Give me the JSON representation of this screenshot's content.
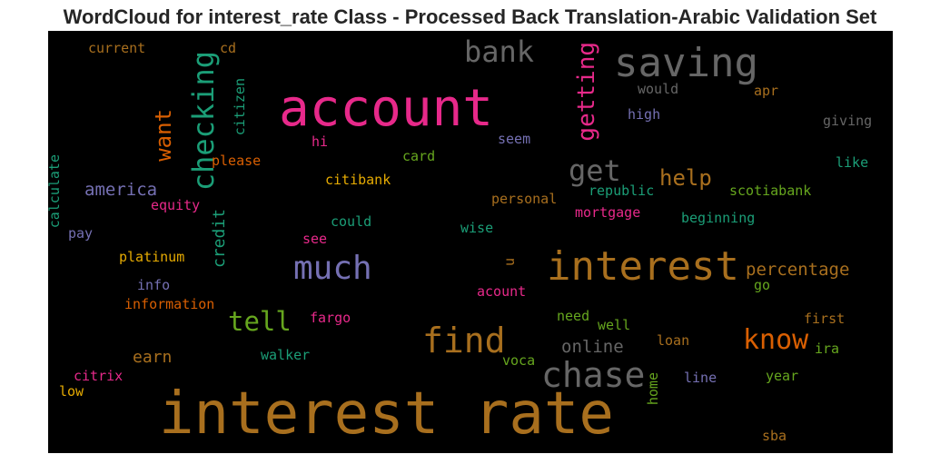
{
  "title": "WordCloud for interest_rate Class - Processed Back Translation-Arabic Validation Set",
  "words": [
    {
      "text": "interest rate",
      "color": "#a86f1e",
      "vertical": false
    },
    {
      "text": "account",
      "color": "#e7298a",
      "vertical": false
    },
    {
      "text": "interest",
      "color": "#a86f1e",
      "vertical": false
    },
    {
      "text": "saving",
      "color": "#666666",
      "vertical": false
    },
    {
      "text": "chase",
      "color": "#666666",
      "vertical": false
    },
    {
      "text": "find",
      "color": "#a86f1e",
      "vertical": false
    },
    {
      "text": "much",
      "color": "#7570b3",
      "vertical": false
    },
    {
      "text": "checking",
      "color": "#1b9e77",
      "vertical": true
    },
    {
      "text": "bank",
      "color": "#666666",
      "vertical": false
    },
    {
      "text": "get",
      "color": "#666666",
      "vertical": false
    },
    {
      "text": "know",
      "color": "#d95f02",
      "vertical": false
    },
    {
      "text": "tell",
      "color": "#66a61e",
      "vertical": false
    },
    {
      "text": "getting",
      "color": "#e7298a",
      "vertical": true
    },
    {
      "text": "want",
      "color": "#d95f02",
      "vertical": true
    },
    {
      "text": "help",
      "color": "#a86f1e",
      "vertical": false
    },
    {
      "text": "percentage",
      "color": "#a86f1e",
      "vertical": false
    },
    {
      "text": "america",
      "color": "#7570b3",
      "vertical": false
    },
    {
      "text": "online",
      "color": "#666666",
      "vertical": false
    },
    {
      "text": "credit",
      "color": "#1b9e77",
      "vertical": true
    },
    {
      "text": "earn",
      "color": "#a86f1e",
      "vertical": false
    },
    {
      "text": "current",
      "color": "#a86f1e",
      "vertical": false
    },
    {
      "text": "cd",
      "color": "#a86f1e",
      "vertical": false
    },
    {
      "text": "citizen",
      "color": "#1b9e77",
      "vertical": true
    },
    {
      "text": "would",
      "color": "#666666",
      "vertical": false
    },
    {
      "text": "apr",
      "color": "#a86f1e",
      "vertical": false
    },
    {
      "text": "high",
      "color": "#7570b3",
      "vertical": false
    },
    {
      "text": "giving",
      "color": "#666666",
      "vertical": false
    },
    {
      "text": "hi",
      "color": "#e7298a",
      "vertical": false
    },
    {
      "text": "seem",
      "color": "#7570b3",
      "vertical": false
    },
    {
      "text": "card",
      "color": "#66a61e",
      "vertical": false
    },
    {
      "text": "please",
      "color": "#d95f02",
      "vertical": false
    },
    {
      "text": "like",
      "color": "#1b9e77",
      "vertical": false
    },
    {
      "text": "calculate",
      "color": "#1b9e77",
      "vertical": true
    },
    {
      "text": "citibank",
      "color": "#e6ab02",
      "vertical": false
    },
    {
      "text": "republic",
      "color": "#1b9e77",
      "vertical": false
    },
    {
      "text": "scotiabank",
      "color": "#66a61e",
      "vertical": false
    },
    {
      "text": "equity",
      "color": "#e7298a",
      "vertical": false
    },
    {
      "text": "personal",
      "color": "#a86f1e",
      "vertical": false
    },
    {
      "text": "mortgage",
      "color": "#e7298a",
      "vertical": false
    },
    {
      "text": "beginning",
      "color": "#1b9e77",
      "vertical": false
    },
    {
      "text": "could",
      "color": "#1b9e77",
      "vertical": false
    },
    {
      "text": "wise",
      "color": "#1b9e77",
      "vertical": false
    },
    {
      "text": "pay",
      "color": "#7570b3",
      "vertical": false
    },
    {
      "text": "see",
      "color": "#e7298a",
      "vertical": false
    },
    {
      "text": "platinum",
      "color": "#e6ab02",
      "vertical": false
    },
    {
      "text": "u",
      "color": "#a86f1e",
      "vertical": true
    },
    {
      "text": "go",
      "color": "#66a61e",
      "vertical": false
    },
    {
      "text": "info",
      "color": "#7570b3",
      "vertical": false
    },
    {
      "text": "acount",
      "color": "#e7298a",
      "vertical": false
    },
    {
      "text": "information",
      "color": "#d95f02",
      "vertical": false
    },
    {
      "text": "fargo",
      "color": "#e7298a",
      "vertical": false
    },
    {
      "text": "need",
      "color": "#66a61e",
      "vertical": false
    },
    {
      "text": "first",
      "color": "#a86f1e",
      "vertical": false
    },
    {
      "text": "well",
      "color": "#66a61e",
      "vertical": false
    },
    {
      "text": "loan",
      "color": "#a86f1e",
      "vertical": false
    },
    {
      "text": "ira",
      "color": "#66a61e",
      "vertical": false
    },
    {
      "text": "walker",
      "color": "#1b9e77",
      "vertical": false
    },
    {
      "text": "voca",
      "color": "#66a61e",
      "vertical": false
    },
    {
      "text": "citrix",
      "color": "#e7298a",
      "vertical": false
    },
    {
      "text": "line",
      "color": "#7570b3",
      "vertical": false
    },
    {
      "text": "year",
      "color": "#66a61e",
      "vertical": false
    },
    {
      "text": "home",
      "color": "#66a61e",
      "vertical": true
    },
    {
      "text": "low",
      "color": "#e6ab02",
      "vertical": false
    },
    {
      "text": "sba",
      "color": "#a86f1e",
      "vertical": false
    }
  ]
}
